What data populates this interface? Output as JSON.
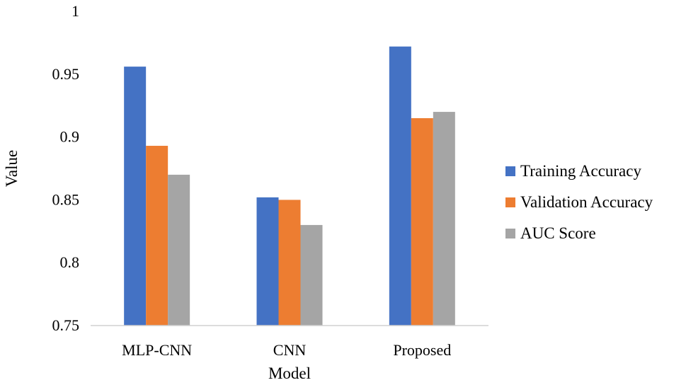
{
  "chart_data": {
    "type": "bar",
    "title": "",
    "xlabel": "Model",
    "ylabel": "Value",
    "categories": [
      "MLP-CNN",
      "CNN",
      "Proposed"
    ],
    "series": [
      {
        "name": "Training Accuracy",
        "color": "#4472C4",
        "values": [
          0.956,
          0.852,
          0.972
        ]
      },
      {
        "name": "Validation Accuracy",
        "color": "#ED7D31",
        "values": [
          0.893,
          0.85,
          0.915
        ]
      },
      {
        "name": "AUC Score",
        "color": "#A5A5A5",
        "values": [
          0.87,
          0.83,
          0.92
        ]
      }
    ],
    "ylim": [
      0.75,
      1
    ],
    "yticks": [
      "0.75",
      "0.8",
      "0.85",
      "0.9",
      "0.95",
      "1"
    ],
    "grid": false,
    "legend_position": "right"
  }
}
